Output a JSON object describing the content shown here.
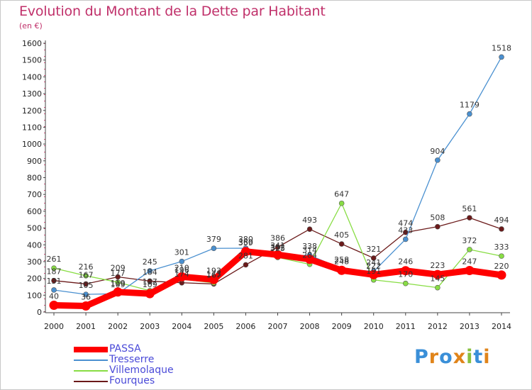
{
  "page": {
    "title": "Evolution du Montant de la Dette par Habitant",
    "subtitle": "(en €)",
    "logo": "Proxiti"
  },
  "chart_data": {
    "type": "line",
    "title": "Evolution du Montant de la Dette par Habitant",
    "subtitle": "(en €)",
    "xlabel": "",
    "ylabel": "",
    "x": [
      2000,
      2001,
      2002,
      2003,
      2004,
      2005,
      2006,
      2007,
      2008,
      2009,
      2010,
      2011,
      2012,
      2013,
      2014
    ],
    "ylim": [
      0,
      1600
    ],
    "yticks": [
      0,
      100,
      200,
      300,
      400,
      500,
      600,
      700,
      800,
      900,
      1000,
      1100,
      1200,
      1300,
      1400,
      1500,
      1600
    ],
    "grid": false,
    "legend": "bottom-left",
    "series": [
      {
        "name": "PASSA",
        "color": "#ff0000",
        "values": [
          40,
          36,
          119,
          109,
          210,
          193,
          360,
          341,
          314,
          248,
          222,
          246,
          223,
          247,
          220
        ],
        "labels": [
          "40",
          "36",
          "119",
          "109",
          "210",
          "193",
          "360",
          "341",
          "314",
          "248",
          "222",
          "246",
          "223",
          "247",
          "220"
        ]
      },
      {
        "name": "Tresserre",
        "color": "#4a90d0",
        "values": [
          131,
          105,
          109,
          245,
          301,
          379,
          380,
          332,
          338,
          258,
          241,
          433,
          904,
          1179,
          1518
        ],
        "labels": [
          "131",
          "105",
          "109",
          "245",
          "301",
          "379",
          "380",
          "332",
          "338",
          "258",
          "241",
          "433",
          "904",
          "1179",
          "1518"
        ]
      },
      {
        "name": "Villemolaque",
        "color": "#88dd44",
        "values": [
          261,
          216,
          177,
          127,
          196,
          173,
          359,
          325,
          284,
          647,
          191,
          170,
          145,
          372,
          333
        ],
        "labels": [
          "261",
          "216",
          "177",
          "127",
          "196",
          "173",
          "359",
          "325",
          "284",
          "647",
          "191",
          "170",
          "145",
          "372",
          "333"
        ]
      },
      {
        "name": "Fourques",
        "color": "#6b1a1a",
        "values": [
          187,
          167,
          209,
          184,
          174,
          167,
          281,
          386,
          493,
          405,
          321,
          474,
          508,
          561,
          494
        ],
        "labels": [
          "187",
          "167",
          "209",
          "184",
          "174",
          "167",
          "281",
          "386",
          "493",
          "405",
          "321",
          "474",
          "508",
          "561",
          "494"
        ]
      }
    ]
  }
}
